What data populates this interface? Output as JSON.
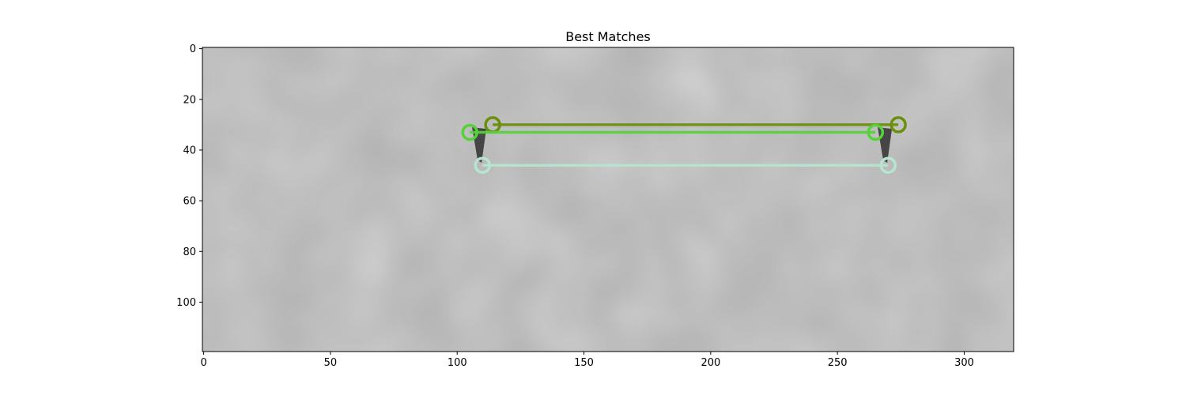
{
  "chart_data": {
    "type": "image",
    "title": "Best Matches",
    "xlim": [
      -0.5,
      319.5
    ],
    "ylim": [
      119.5,
      -0.5
    ],
    "xticks": [
      0,
      50,
      100,
      150,
      200,
      250,
      300
    ],
    "yticks": [
      0,
      20,
      40,
      60,
      80,
      100
    ],
    "image_split_x": 160,
    "image_background_color": "#a9a9a9",
    "matches": [
      {
        "left": {
          "x": 114,
          "y": 30
        },
        "right": {
          "x": 274,
          "y": 30
        },
        "color": "#6a8f0a"
      },
      {
        "left": {
          "x": 105,
          "y": 33
        },
        "right": {
          "x": 265,
          "y": 33
        },
        "color": "#55d23a"
      },
      {
        "left": {
          "x": 110,
          "y": 46
        },
        "right": {
          "x": 270,
          "y": 46
        },
        "color": "#b6e6d0"
      }
    ],
    "dark_features": [
      {
        "x": 109,
        "y_top": 31,
        "y_bottom": 45
      },
      {
        "x": 269,
        "y_top": 31,
        "y_bottom": 45
      }
    ]
  }
}
